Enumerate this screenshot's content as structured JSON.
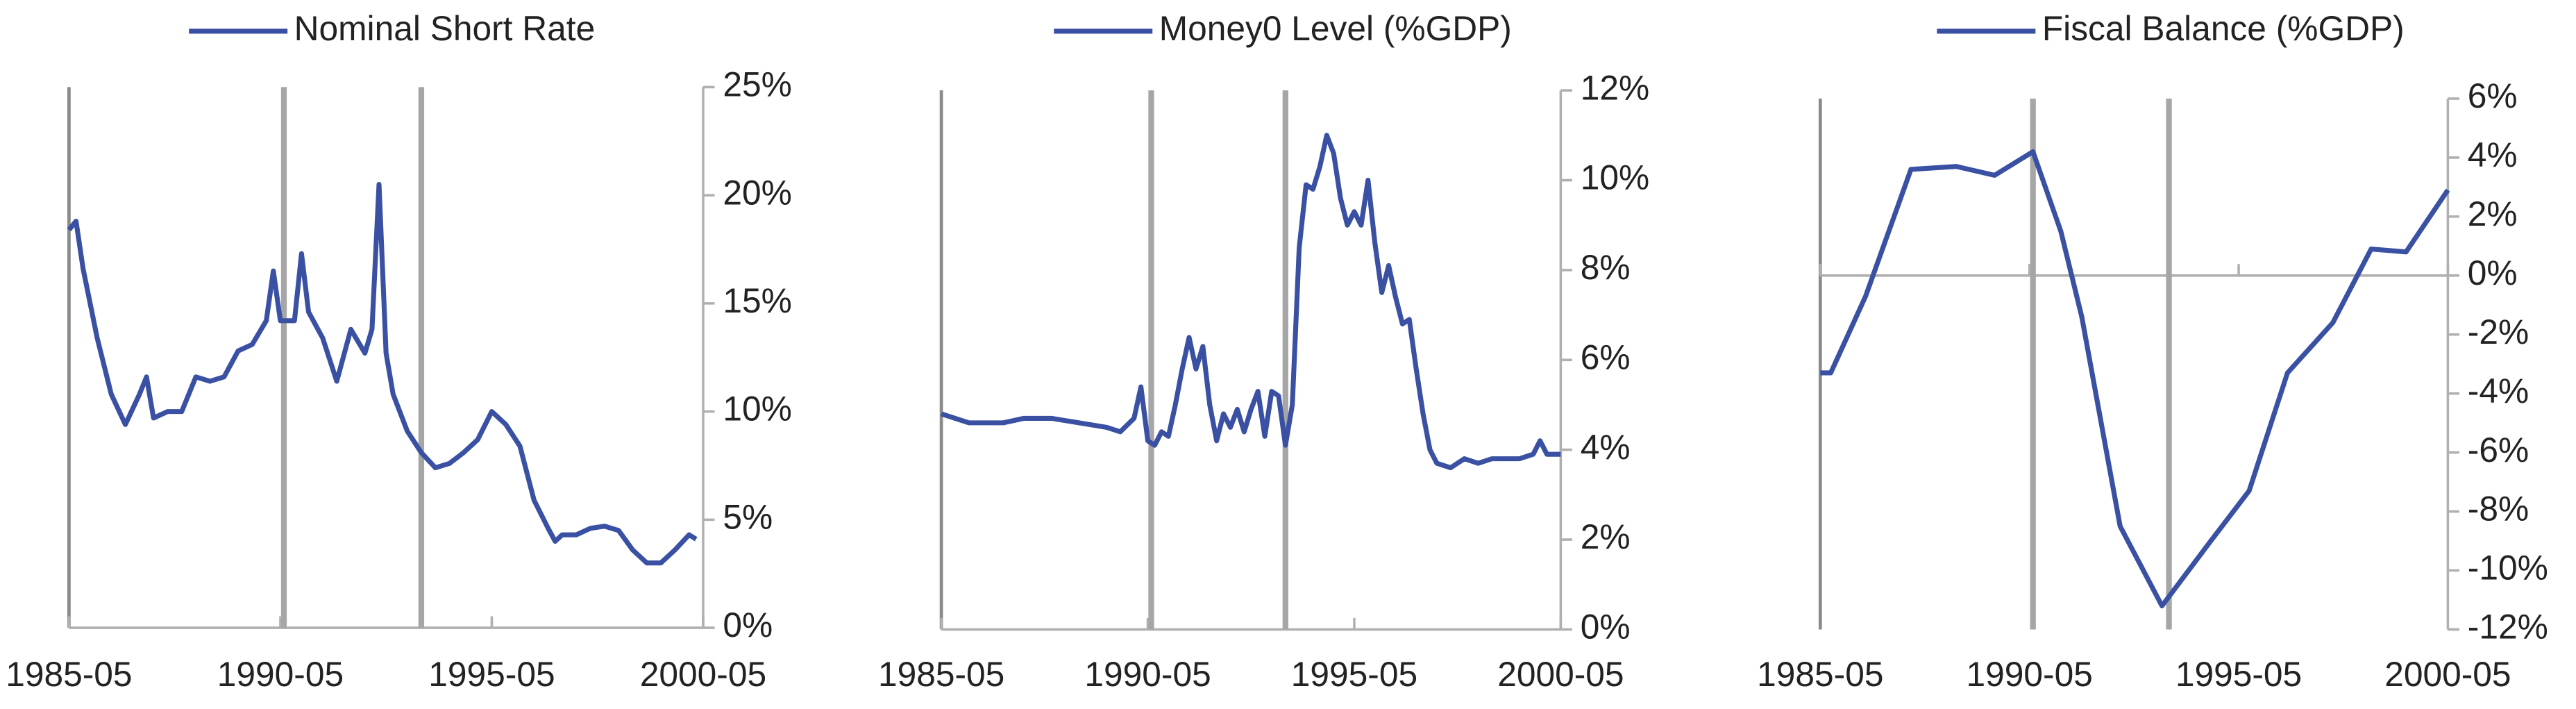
{
  "chart_data": [
    {
      "type": "line",
      "x": [
        "1985-05",
        "1985-07",
        "1985-09",
        "1986-01",
        "1986-05",
        "1986-09",
        "1987-01",
        "1987-03",
        "1987-05",
        "1987-09",
        "1988-01",
        "1988-03",
        "1988-05",
        "1988-09",
        "1989-01",
        "1989-05",
        "1989-09",
        "1990-01",
        "1990-03",
        "1990-05",
        "1990-09",
        "1990-11",
        "1991-01",
        "1991-05",
        "1991-09",
        "1992-01",
        "1992-05",
        "1992-07",
        "1992-09",
        "1992-11",
        "1993-01",
        "1993-05",
        "1993-09",
        "1994-01",
        "1994-05",
        "1994-09",
        "1995-01",
        "1995-05",
        "1995-09",
        "1996-01",
        "1996-05",
        "1996-09",
        "1996-11",
        "1997-01",
        "1997-05",
        "1997-09",
        "1998-01",
        "1998-05",
        "1998-09",
        "1999-01",
        "1999-05",
        "1999-09",
        "2000-01",
        "2000-03"
      ],
      "series": [
        {
          "name": "Nominal Short Rate",
          "color": "#3a51a3",
          "values": [
            18.4,
            18.8,
            16.6,
            13.4,
            10.8,
            9.4,
            10.8,
            11.6,
            9.7,
            10.0,
            10.0,
            10.8,
            11.6,
            11.4,
            11.6,
            12.8,
            13.1,
            14.2,
            16.5,
            14.2,
            14.2,
            17.3,
            14.6,
            13.4,
            11.4,
            13.8,
            12.7,
            13.8,
            20.5,
            12.7,
            10.8,
            9.1,
            8.1,
            7.4,
            7.6,
            8.1,
            8.7,
            10.0,
            9.4,
            8.4,
            5.9,
            4.6,
            4.0,
            4.3,
            4.3,
            4.6,
            4.7,
            4.5,
            3.6,
            3.0,
            3.0,
            3.6,
            4.3,
            4.1
          ]
        }
      ],
      "xlim": [
        "1985-05",
        "2000-05"
      ],
      "xticks": [
        "1985-05",
        "1990-05",
        "1995-05",
        "2000-05"
      ],
      "ylim": [
        0,
        25
      ],
      "yticks": [
        {
          "value": 0,
          "label": "0%"
        },
        {
          "value": 5,
          "label": "5%"
        },
        {
          "value": 10,
          "label": "10%"
        },
        {
          "value": 15,
          "label": "15%"
        },
        {
          "value": 20,
          "label": "20%"
        },
        {
          "value": 25,
          "label": "25%"
        }
      ],
      "vlines": [
        "1990-06",
        "1993-09"
      ],
      "y_axis_side": "right",
      "legend": "top",
      "grid": false
    },
    {
      "type": "line",
      "x": [
        "1985-05",
        "1986-01",
        "1986-11",
        "1987-05",
        "1988-01",
        "1988-09",
        "1989-05",
        "1989-09",
        "1990-01",
        "1990-03",
        "1990-05",
        "1990-07",
        "1990-09",
        "1990-11",
        "1991-01",
        "1991-03",
        "1991-05",
        "1991-07",
        "1991-09",
        "1991-11",
        "1992-01",
        "1992-03",
        "1992-05",
        "1992-07",
        "1992-09",
        "1992-11",
        "1993-01",
        "1993-03",
        "1993-05",
        "1993-07",
        "1993-09",
        "1993-11",
        "1994-01",
        "1994-03",
        "1994-05",
        "1994-07",
        "1994-09",
        "1994-11",
        "1995-01",
        "1995-03",
        "1995-05",
        "1995-07",
        "1995-09",
        "1995-11",
        "1996-01",
        "1996-03",
        "1996-05",
        "1996-07",
        "1996-09",
        "1996-11",
        "1997-01",
        "1997-03",
        "1997-05",
        "1997-09",
        "1998-01",
        "1998-05",
        "1998-09",
        "1999-01",
        "1999-05",
        "1999-09",
        "1999-11",
        "2000-01",
        "2000-05"
      ],
      "series": [
        {
          "name": "Money0 Level (%GDP)",
          "color": "#3a51a3",
          "values": [
            4.8,
            4.6,
            4.6,
            4.7,
            4.7,
            4.6,
            4.5,
            4.4,
            4.7,
            5.4,
            4.2,
            4.1,
            4.4,
            4.3,
            5.0,
            5.8,
            6.5,
            5.8,
            6.3,
            5.0,
            4.2,
            4.8,
            4.5,
            4.9,
            4.4,
            4.9,
            5.3,
            4.3,
            5.3,
            5.2,
            4.1,
            5.0,
            8.5,
            9.9,
            9.8,
            10.3,
            11.0,
            10.6,
            9.6,
            9.0,
            9.3,
            9.0,
            10.0,
            8.6,
            7.5,
            8.1,
            7.4,
            6.8,
            6.9,
            5.8,
            4.8,
            4.0,
            3.7,
            3.6,
            3.8,
            3.7,
            3.8,
            3.8,
            3.8,
            3.9,
            4.2,
            3.9,
            3.9
          ]
        }
      ],
      "xlim": [
        "1985-05",
        "2000-05"
      ],
      "xticks": [
        "1985-05",
        "1990-05",
        "1995-05",
        "2000-05"
      ],
      "ylim": [
        0,
        12
      ],
      "yticks": [
        {
          "value": 0,
          "label": "0%"
        },
        {
          "value": 2,
          "label": "2%"
        },
        {
          "value": 4,
          "label": "4%"
        },
        {
          "value": 6,
          "label": "6%"
        },
        {
          "value": 8,
          "label": "8%"
        },
        {
          "value": 10,
          "label": "10%"
        },
        {
          "value": 12,
          "label": "12%"
        }
      ],
      "vlines": [
        "1990-06",
        "1993-09"
      ],
      "y_axis_side": "right",
      "legend": "top",
      "grid": false
    },
    {
      "type": "line",
      "x": [
        "1985-05",
        "1985-08",
        "1986-06",
        "1987-07",
        "1988-08",
        "1989-07",
        "1990-06",
        "1991-02",
        "1991-08",
        "1992-07",
        "1993-07",
        "1994-09",
        "1995-08",
        "1996-07",
        "1997-08",
        "1998-07",
        "1999-05",
        "2000-05"
      ],
      "series": [
        {
          "name": "Fiscal Balance (%GDP)",
          "color": "#3a51a3",
          "values": [
            -3.3,
            -3.3,
            -0.7,
            3.6,
            3.7,
            3.4,
            4.2,
            1.5,
            -1.4,
            -8.5,
            -11.2,
            -9.0,
            -7.3,
            -3.3,
            -1.6,
            0.9,
            0.8,
            2.9
          ]
        }
      ],
      "xlim": [
        "1985-05",
        "2000-05"
      ],
      "xticks": [
        "1985-05",
        "1990-05",
        "1995-05",
        "2000-05"
      ],
      "ylim": [
        -12,
        6
      ],
      "yticks": [
        {
          "value": -12,
          "label": "-12%"
        },
        {
          "value": -10,
          "label": "-10%"
        },
        {
          "value": -8,
          "label": "-8%"
        },
        {
          "value": -6,
          "label": "-6%"
        },
        {
          "value": -4,
          "label": "-4%"
        },
        {
          "value": -2,
          "label": "-2%"
        },
        {
          "value": 0,
          "label": "0%"
        },
        {
          "value": 2,
          "label": "2%"
        },
        {
          "value": 4,
          "label": "4%"
        },
        {
          "value": 6,
          "label": "6%"
        }
      ],
      "vlines": [
        "1990-06",
        "1993-09"
      ],
      "y_axis_side": "right",
      "legend": "top",
      "grid": false
    }
  ]
}
